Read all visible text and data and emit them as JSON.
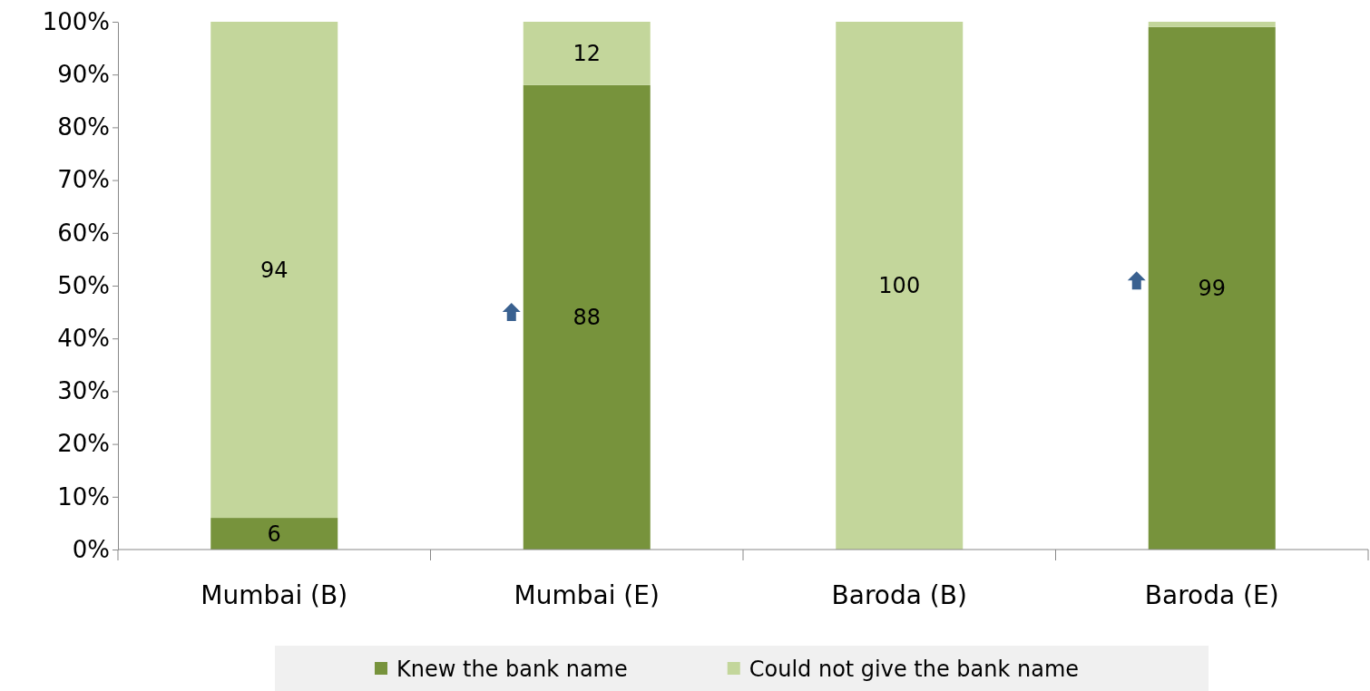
{
  "chart_data": {
    "type": "bar",
    "stacked": true,
    "categories": [
      "Mumbai (B)",
      "Mumbai (E)",
      "Baroda (B)",
      "Baroda (E)"
    ],
    "series": [
      {
        "name": "Knew the bank name",
        "color": "#77933c",
        "values": [
          6,
          88,
          0,
          99
        ],
        "value_labels": [
          "6",
          "88",
          null,
          "99"
        ]
      },
      {
        "name": "Could not give the bank name",
        "color": "#c3d69b",
        "values": [
          94,
          12,
          100,
          1
        ],
        "value_labels": [
          "94",
          "12",
          "100",
          null
        ]
      }
    ],
    "ylim": [
      0,
      100
    ],
    "yticks": [
      {
        "value": 0,
        "label": "0%"
      },
      {
        "value": 10,
        "label": "10%"
      },
      {
        "value": 20,
        "label": "20%"
      },
      {
        "value": 30,
        "label": "30%"
      },
      {
        "value": 40,
        "label": "40%"
      },
      {
        "value": 50,
        "label": "50%"
      },
      {
        "value": 60,
        "label": "60%"
      },
      {
        "value": 70,
        "label": "70%"
      },
      {
        "value": 80,
        "label": "80%"
      },
      {
        "value": 90,
        "label": "90%"
      },
      {
        "value": 100,
        "label": "100%"
      }
    ],
    "grid": false,
    "legend": "bottom"
  }
}
